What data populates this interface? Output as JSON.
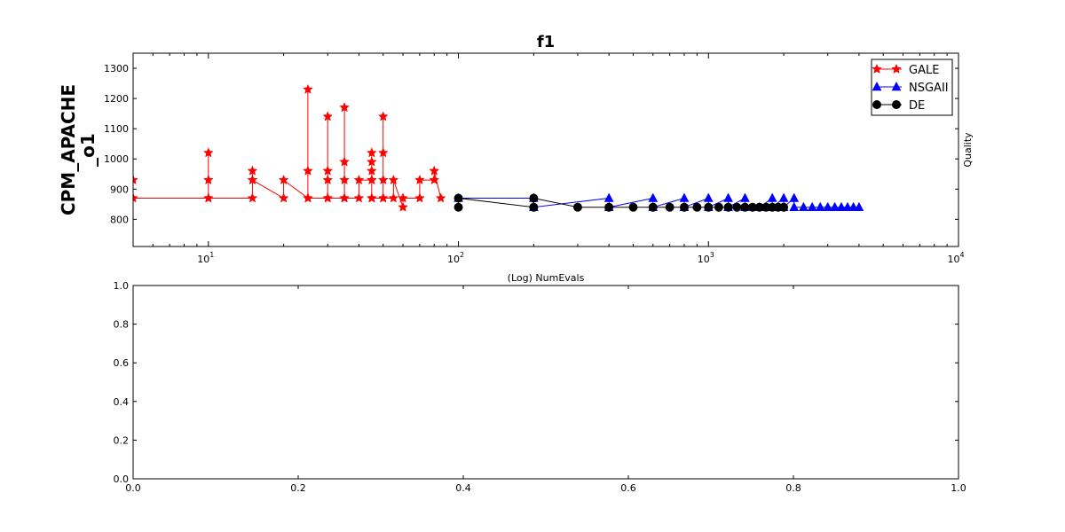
{
  "chart_data": [
    {
      "type": "line",
      "title": "f1",
      "row_label": "CPM_APACHE\n_o1",
      "xlabel": "(Log) NumEvals",
      "ylabel": "Quality",
      "xscale": "log",
      "xlim": [
        5,
        10000
      ],
      "ylim": [
        710,
        1350
      ],
      "xticks": [
        10,
        100,
        1000,
        10000
      ],
      "xtick_labels": [
        {
          "base": "10",
          "exp": "1"
        },
        {
          "base": "10",
          "exp": "2"
        },
        {
          "base": "10",
          "exp": "3"
        },
        {
          "base": "10",
          "exp": "4"
        }
      ],
      "yticks": [
        800,
        900,
        1000,
        1100,
        1200,
        1300
      ],
      "ytick_labels": [
        "800",
        "900",
        "1000",
        "1100",
        "1200",
        "1300"
      ],
      "legend_position": "top-right",
      "series": [
        {
          "name": "GALE",
          "color": "#ff0000",
          "marker": "star",
          "points": [
            [
              5,
              930
            ],
            [
              5,
              870
            ],
            [
              10,
              870
            ],
            [
              10,
              930
            ],
            [
              10,
              1020
            ],
            [
              10,
              870
            ],
            [
              15,
              870
            ],
            [
              15,
              930
            ],
            [
              15,
              960
            ],
            [
              15,
              930
            ],
            [
              20,
              870
            ],
            [
              20,
              930
            ],
            [
              25,
              870
            ],
            [
              25,
              1230
            ],
            [
              25,
              960
            ],
            [
              25,
              870
            ],
            [
              30,
              870
            ],
            [
              30,
              1140
            ],
            [
              30,
              930
            ],
            [
              30,
              960
            ],
            [
              30,
              870
            ],
            [
              35,
              870
            ],
            [
              35,
              1170
            ],
            [
              35,
              990
            ],
            [
              35,
              930
            ],
            [
              35,
              870
            ],
            [
              40,
              870
            ],
            [
              40,
              930
            ],
            [
              45,
              930
            ],
            [
              45,
              870
            ],
            [
              45,
              1020
            ],
            [
              45,
              990
            ],
            [
              45,
              960
            ],
            [
              45,
              930
            ],
            [
              45,
              870
            ],
            [
              50,
              870
            ],
            [
              50,
              1140
            ],
            [
              50,
              1020
            ],
            [
              50,
              930
            ],
            [
              50,
              870
            ],
            [
              55,
              870
            ],
            [
              55,
              930
            ],
            [
              60,
              840
            ],
            [
              60,
              870
            ],
            [
              70,
              870
            ],
            [
              70,
              930
            ],
            [
              80,
              930
            ],
            [
              80,
              960
            ],
            [
              85,
              870
            ]
          ]
        },
        {
          "name": "NSGAII",
          "color": "#0000ff",
          "marker": "triangle",
          "points": [
            [
              100,
              870
            ],
            [
              200,
              870
            ],
            [
              200,
              840
            ],
            [
              400,
              870
            ],
            [
              400,
              840
            ],
            [
              600,
              870
            ],
            [
              600,
              840
            ],
            [
              800,
              870
            ],
            [
              800,
              840
            ],
            [
              1000,
              870
            ],
            [
              1000,
              840
            ],
            [
              1200,
              870
            ],
            [
              1200,
              840
            ],
            [
              1400,
              870
            ],
            [
              1400,
              840
            ],
            [
              1600,
              840
            ],
            [
              1800,
              870
            ],
            [
              1800,
              840
            ],
            [
              2000,
              870
            ],
            [
              2000,
              840
            ],
            [
              2200,
              870
            ],
            [
              2200,
              840
            ],
            [
              2400,
              840
            ],
            [
              2600,
              840
            ],
            [
              2800,
              840
            ],
            [
              3000,
              840
            ],
            [
              3200,
              840
            ],
            [
              3400,
              840
            ],
            [
              3600,
              840
            ],
            [
              3800,
              840
            ],
            [
              4000,
              840
            ]
          ]
        },
        {
          "name": "DE",
          "color": "#000000",
          "marker": "circle",
          "points": [
            [
              100,
              840
            ],
            [
              100,
              870
            ],
            [
              200,
              840
            ],
            [
              200,
              870
            ],
            [
              300,
              840
            ],
            [
              400,
              840
            ],
            [
              500,
              840
            ],
            [
              600,
              840
            ],
            [
              700,
              840
            ],
            [
              800,
              840
            ],
            [
              900,
              840
            ],
            [
              1000,
              840
            ],
            [
              1100,
              840
            ],
            [
              1200,
              840
            ],
            [
              1300,
              840
            ],
            [
              1400,
              840
            ],
            [
              1500,
              840
            ],
            [
              1600,
              840
            ],
            [
              1700,
              840
            ],
            [
              1800,
              840
            ],
            [
              1900,
              840
            ],
            [
              2000,
              840
            ]
          ]
        }
      ]
    },
    {
      "type": "line",
      "title": "",
      "xlabel": "",
      "ylabel": "",
      "xlim": [
        0,
        1
      ],
      "ylim": [
        0,
        1
      ],
      "xticks": [
        0,
        0.2,
        0.4,
        0.6,
        0.8,
        1
      ],
      "xtick_labels": [
        "0.0",
        "0.2",
        "0.4",
        "0.6",
        "0.8",
        "1.0"
      ],
      "yticks": [
        0,
        0.2,
        0.4,
        0.6,
        0.8,
        1
      ],
      "ytick_labels": [
        "0.0",
        "0.2",
        "0.4",
        "0.6",
        "0.8",
        "1.0"
      ],
      "series": []
    }
  ]
}
